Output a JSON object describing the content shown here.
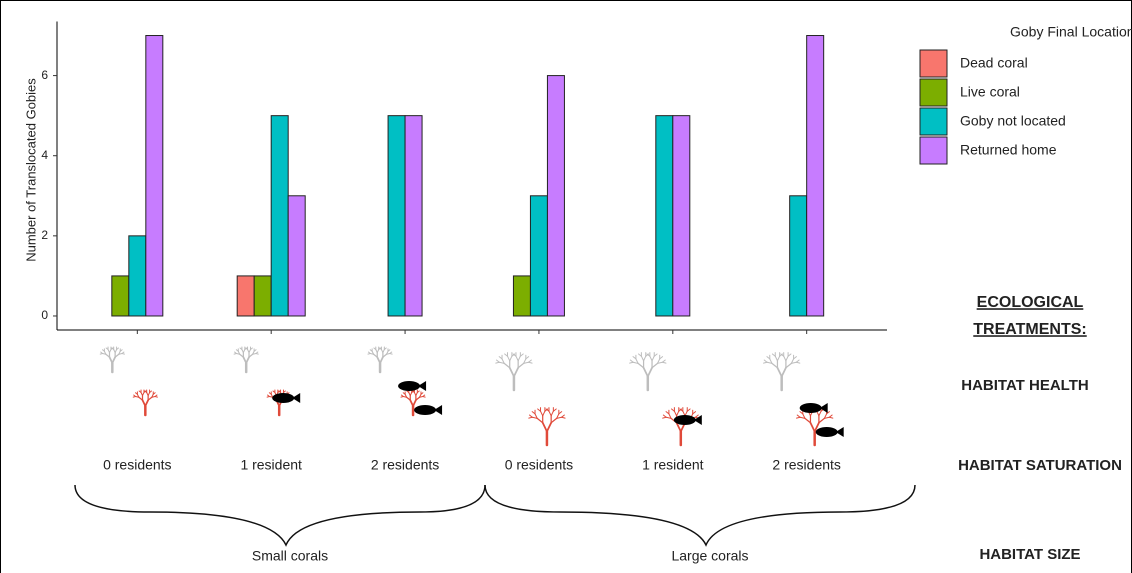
{
  "chart_data": {
    "type": "bar",
    "ylabel": "Number of Translocated Gobies",
    "categories": [
      "0 residents",
      "1 resident",
      "2 residents",
      "0 residents",
      "1 resident",
      "2 residents"
    ],
    "group_labels": [
      "Small corals",
      "Large corals"
    ],
    "series": [
      {
        "name": "Dead coral",
        "color": "#f8766d",
        "values": [
          null,
          1,
          null,
          null,
          null,
          null
        ]
      },
      {
        "name": "Live coral",
        "color": "#7cae00",
        "values": [
          1,
          1,
          null,
          1,
          null,
          null
        ]
      },
      {
        "name": "Goby not located",
        "color": "#00bfc4",
        "values": [
          2,
          5,
          5,
          3,
          5,
          3
        ]
      },
      {
        "name": "Returned home",
        "color": "#c77cff",
        "values": [
          7,
          3,
          5,
          6,
          5,
          7
        ]
      }
    ],
    "legend_title": "Goby Final Location",
    "legend_position": "right",
    "ylim": [
      -0.35,
      7.35
    ],
    "yticks": [
      0,
      2,
      4,
      6
    ],
    "grid": false,
    "annotations": [
      "ECOLOGICAL",
      "TREATMENTS:",
      "HABITAT HEALTH",
      "HABITAT SATURATION",
      "HABITAT SIZE"
    ]
  }
}
